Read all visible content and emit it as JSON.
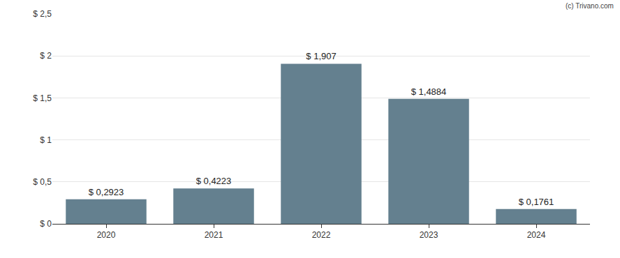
{
  "chart_data": {
    "type": "bar",
    "categories": [
      "2020",
      "2021",
      "2022",
      "2023",
      "2024"
    ],
    "values": [
      0.2923,
      0.4223,
      1.907,
      1.4884,
      0.1761
    ],
    "value_labels": [
      "$ 0,2923",
      "$ 0,4223",
      "$ 1,907",
      "$ 1,4884",
      "$ 0,1761"
    ],
    "data_labels": true,
    "color": "#64808f",
    "ylim": [
      0,
      2.5
    ],
    "yticks": [
      {
        "value": 0,
        "label": "$ 0"
      },
      {
        "value": 0.5,
        "label": "$ 0,5"
      },
      {
        "value": 1,
        "label": "$ 1"
      },
      {
        "value": 1.5,
        "label": "$ 1,5"
      },
      {
        "value": 2,
        "label": "$ 2"
      },
      {
        "value": 2.5,
        "label": "$ 2,5"
      }
    ],
    "grid": true,
    "annotations": [
      "(c) Trivano.com"
    ]
  }
}
